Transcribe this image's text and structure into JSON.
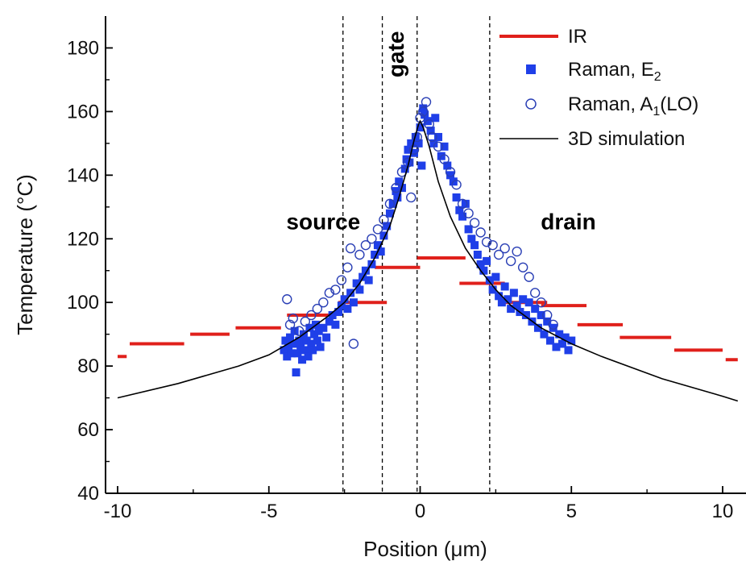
{
  "chart_data": {
    "type": "scatter",
    "xlabel": "Position (μm)",
    "ylabel": "Temperature (°C)",
    "xlim": [
      -10,
      10.5
    ],
    "ylim": [
      40,
      190
    ],
    "xticks": [
      -10,
      -5,
      0,
      5,
      10
    ],
    "yticks": [
      40,
      60,
      80,
      100,
      120,
      140,
      160,
      180
    ],
    "x_tick_labels": [
      "-10",
      "-5",
      "0",
      "5",
      "10"
    ],
    "y_tick_labels": [
      "40",
      "60",
      "80",
      "100",
      "120",
      "140",
      "160",
      "180"
    ],
    "grid": false,
    "legend_position": "top-right",
    "colors": {
      "ir": "#e0201b",
      "raman_e2": "#1f3fe8",
      "raman_a1": "#2a3fb5",
      "sim": "#000000"
    },
    "regions": [
      {
        "label": "source",
        "x": -3.2,
        "y": 123
      },
      {
        "label": "gate",
        "x": -0.55,
        "y": 178
      },
      {
        "label": "drain",
        "x": 4.9,
        "y": 123
      }
    ],
    "vertical_lines_x": [
      -2.55,
      -1.25,
      -0.1,
      2.3
    ],
    "series": [
      {
        "name": "IR",
        "kind": "step",
        "segments": [
          [
            -10.0,
            -9.7,
            83
          ],
          [
            -9.6,
            -7.8,
            87
          ],
          [
            -7.6,
            -6.3,
            90
          ],
          [
            -6.1,
            -4.6,
            92
          ],
          [
            -4.4,
            -2.9,
            96
          ],
          [
            -2.7,
            -1.1,
            100
          ],
          [
            -1.5,
            0.0,
            111
          ],
          [
            -0.1,
            1.5,
            114
          ],
          [
            1.3,
            2.8,
            106
          ],
          [
            2.7,
            4.2,
            100
          ],
          [
            4.0,
            5.5,
            99
          ],
          [
            5.2,
            6.7,
            93
          ],
          [
            6.6,
            8.3,
            89
          ],
          [
            8.4,
            10.0,
            85
          ],
          [
            10.1,
            10.5,
            82
          ]
        ]
      },
      {
        "name": "Raman, E2",
        "kind": "markers",
        "points": [
          [
            -4.5,
            85
          ],
          [
            -4.45,
            88
          ],
          [
            -4.4,
            83
          ],
          [
            -4.35,
            86
          ],
          [
            -4.3,
            89
          ],
          [
            -4.25,
            84
          ],
          [
            -4.2,
            87
          ],
          [
            -4.15,
            91
          ],
          [
            -4.1,
            78
          ],
          [
            -4.05,
            84
          ],
          [
            -4.0,
            88
          ],
          [
            -3.95,
            86
          ],
          [
            -3.9,
            82
          ],
          [
            -3.85,
            90
          ],
          [
            -3.8,
            85
          ],
          [
            -3.75,
            88
          ],
          [
            -3.7,
            83
          ],
          [
            -3.65,
            92
          ],
          [
            -3.6,
            87
          ],
          [
            -3.55,
            85
          ],
          [
            -3.5,
            90
          ],
          [
            -3.45,
            93
          ],
          [
            -3.4,
            88
          ],
          [
            -3.35,
            91
          ],
          [
            -3.3,
            86
          ],
          [
            -3.2,
            92
          ],
          [
            -3.1,
            89
          ],
          [
            -3.0,
            94
          ],
          [
            -2.9,
            96
          ],
          [
            -2.8,
            93
          ],
          [
            -2.7,
            97
          ],
          [
            -2.6,
            99
          ],
          [
            -2.5,
            101
          ],
          [
            -2.4,
            98
          ],
          [
            -2.3,
            103
          ],
          [
            -2.2,
            100
          ],
          [
            -2.1,
            106
          ],
          [
            -2.0,
            104
          ],
          [
            -1.9,
            108
          ],
          [
            -1.8,
            110
          ],
          [
            -1.7,
            107
          ],
          [
            -1.6,
            112
          ],
          [
            -1.5,
            115
          ],
          [
            -1.4,
            118
          ],
          [
            -1.3,
            116
          ],
          [
            -1.2,
            121
          ],
          [
            -1.1,
            124
          ],
          [
            -1.0,
            128
          ],
          [
            -0.9,
            131
          ],
          [
            -0.8,
            135
          ],
          [
            -0.75,
            133
          ],
          [
            -0.7,
            138
          ],
          [
            -0.6,
            136
          ],
          [
            -0.5,
            142
          ],
          [
            -0.45,
            145
          ],
          [
            -0.4,
            148
          ],
          [
            -0.35,
            144
          ],
          [
            -0.3,
            150
          ],
          [
            -0.2,
            147
          ],
          [
            -0.15,
            152
          ],
          [
            -0.05,
            150
          ],
          [
            0.0,
            155
          ],
          [
            0.05,
            143
          ],
          [
            0.1,
            161
          ],
          [
            0.15,
            159
          ],
          [
            0.25,
            157
          ],
          [
            0.35,
            154
          ],
          [
            0.45,
            150
          ],
          [
            0.5,
            158
          ],
          [
            0.6,
            152
          ],
          [
            0.7,
            146
          ],
          [
            0.8,
            149
          ],
          [
            0.9,
            143
          ],
          [
            1.0,
            140
          ],
          [
            1.1,
            138
          ],
          [
            1.2,
            133
          ],
          [
            1.3,
            129
          ],
          [
            1.4,
            127
          ],
          [
            1.5,
            131
          ],
          [
            1.6,
            123
          ],
          [
            1.7,
            120
          ],
          [
            1.8,
            118
          ],
          [
            1.9,
            115
          ],
          [
            2.0,
            112
          ],
          [
            2.1,
            110
          ],
          [
            2.2,
            113
          ],
          [
            2.3,
            107
          ],
          [
            2.4,
            104
          ],
          [
            2.5,
            108
          ],
          [
            2.6,
            102
          ],
          [
            2.7,
            100
          ],
          [
            2.8,
            105
          ],
          [
            2.9,
            101
          ],
          [
            3.0,
            98
          ],
          [
            3.1,
            103
          ],
          [
            3.2,
            99
          ],
          [
            3.3,
            97
          ],
          [
            3.4,
            101
          ],
          [
            3.5,
            96
          ],
          [
            3.6,
            100
          ],
          [
            3.7,
            94
          ],
          [
            3.8,
            98
          ],
          [
            3.9,
            92
          ],
          [
            4.0,
            96
          ],
          [
            4.1,
            90
          ],
          [
            4.2,
            94
          ],
          [
            4.3,
            88
          ],
          [
            4.4,
            92
          ],
          [
            4.5,
            86
          ],
          [
            4.6,
            90
          ],
          [
            4.7,
            87
          ],
          [
            4.8,
            89
          ],
          [
            4.9,
            85
          ],
          [
            5.0,
            88
          ]
        ]
      },
      {
        "name": "Raman, A1(LO)",
        "kind": "open-markers",
        "points": [
          [
            -4.4,
            101
          ],
          [
            -4.3,
            93
          ],
          [
            -4.2,
            95
          ],
          [
            -4.0,
            91
          ],
          [
            -3.8,
            94
          ],
          [
            -3.6,
            96
          ],
          [
            -3.4,
            98
          ],
          [
            -3.2,
            100
          ],
          [
            -3.0,
            103
          ],
          [
            -2.8,
            104
          ],
          [
            -2.6,
            107
          ],
          [
            -2.4,
            111
          ],
          [
            -2.3,
            117
          ],
          [
            -2.2,
            87
          ],
          [
            -2.0,
            115
          ],
          [
            -1.8,
            118
          ],
          [
            -1.6,
            120
          ],
          [
            -1.4,
            123
          ],
          [
            -1.2,
            126
          ],
          [
            -1.0,
            131
          ],
          [
            -0.8,
            136
          ],
          [
            -0.6,
            141
          ],
          [
            -0.4,
            144
          ],
          [
            -0.3,
            133
          ],
          [
            -0.2,
            148
          ],
          [
            -0.1,
            152
          ],
          [
            0.0,
            158
          ],
          [
            0.1,
            160
          ],
          [
            0.2,
            163
          ],
          [
            0.3,
            156
          ],
          [
            0.4,
            152
          ],
          [
            0.6,
            149
          ],
          [
            0.8,
            145
          ],
          [
            1.0,
            141
          ],
          [
            1.2,
            137
          ],
          [
            1.4,
            131
          ],
          [
            1.6,
            128
          ],
          [
            1.8,
            125
          ],
          [
            2.0,
            122
          ],
          [
            2.2,
            119
          ],
          [
            2.4,
            118
          ],
          [
            2.6,
            115
          ],
          [
            2.8,
            117
          ],
          [
            3.0,
            113
          ],
          [
            3.2,
            116
          ],
          [
            3.4,
            111
          ],
          [
            3.6,
            108
          ],
          [
            3.8,
            103
          ],
          [
            4.0,
            100
          ],
          [
            4.2,
            96
          ],
          [
            4.4,
            93
          ]
        ]
      },
      {
        "name": "3D simulation",
        "kind": "line",
        "points": [
          [
            -10.0,
            70
          ],
          [
            -8.0,
            74.5
          ],
          [
            -6.0,
            80
          ],
          [
            -5.0,
            83.5
          ],
          [
            -4.0,
            89
          ],
          [
            -3.0,
            96
          ],
          [
            -2.5,
            100
          ],
          [
            -2.0,
            106
          ],
          [
            -1.5,
            114
          ],
          [
            -1.0,
            124
          ],
          [
            -0.7,
            133
          ],
          [
            -0.4,
            143
          ],
          [
            -0.2,
            151
          ],
          [
            -0.05,
            156
          ],
          [
            0.0,
            157
          ],
          [
            0.1,
            155
          ],
          [
            0.3,
            149
          ],
          [
            0.6,
            138
          ],
          [
            1.0,
            127
          ],
          [
            1.5,
            117
          ],
          [
            2.0,
            110
          ],
          [
            2.5,
            104
          ],
          [
            3.0,
            99
          ],
          [
            4.0,
            92
          ],
          [
            5.0,
            87
          ],
          [
            6.0,
            83
          ],
          [
            8.0,
            76
          ],
          [
            10.0,
            70.5
          ],
          [
            10.5,
            69
          ]
        ]
      }
    ],
    "legend": [
      {
        "label": "IR",
        "sub": "",
        "suffix": ""
      },
      {
        "label": "Raman, E",
        "sub": "2",
        "suffix": ""
      },
      {
        "label": "Raman, A",
        "sub": "1",
        "suffix": "(LO)"
      },
      {
        "label": "3D simulation",
        "sub": "",
        "suffix": ""
      }
    ]
  }
}
